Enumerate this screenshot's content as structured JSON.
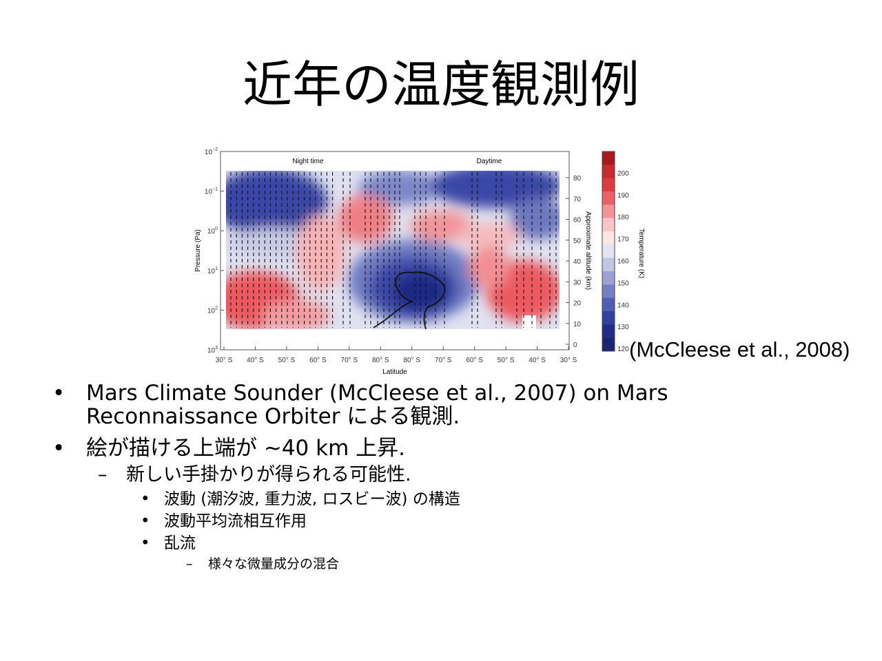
{
  "slide": {
    "title": "近年の温度観測例",
    "citation": "(McCleese et al., 2008)"
  },
  "figure": {
    "panel_labels": {
      "left": "Night time",
      "right": "Daytime"
    },
    "ylabel": "Pressure (Pa)",
    "xlabel": "Latitude",
    "right_axis_label": "Approximate altitude (km)",
    "pressure_ticks": [
      {
        "base": "10",
        "exp": "−2"
      },
      {
        "base": "10",
        "exp": "−1"
      },
      {
        "base": "10",
        "exp": "0"
      },
      {
        "base": "10",
        "exp": "1"
      },
      {
        "base": "10",
        "exp": "2"
      },
      {
        "base": "10",
        "exp": "3"
      }
    ],
    "altitude_ticks": [
      "80",
      "70",
      "60",
      "50",
      "40",
      "30",
      "20",
      "10",
      "0"
    ],
    "latitude_ticks": [
      "30° S",
      "40° S",
      "50° S",
      "60° S",
      "70° S",
      "80° S",
      "80° S",
      "70° S",
      "60° S",
      "50° S",
      "40° S",
      "30° S"
    ],
    "colorbar": {
      "label": "Temperature (K)",
      "ticks": [
        "200",
        "190",
        "180",
        "170",
        "160",
        "150",
        "140",
        "130",
        "120"
      ],
      "colors": [
        "#a8191f",
        "#c92a2e",
        "#e03b3e",
        "#ec6166",
        "#f39598",
        "#f9c4c5",
        "#fbe6e6",
        "#e3e4f2",
        "#c2c6e4",
        "#9ba2d3",
        "#7480c4",
        "#4f5db3",
        "#3240a0",
        "#202c86",
        "#1b2470"
      ]
    }
  },
  "bullets": {
    "b1_line1": "Mars Climate Sounder (McCleese et al., 2007) on Mars",
    "b1_line2": "Reconnaissance Orbiter による観測.",
    "b2": "絵が描ける上端が ~40 km 上昇.",
    "b2_sub": "新しい手掛かりが得られる可能性.",
    "b2_sub_items": [
      "波動 (潮汐波, 重力波, ロスビー波) の構造",
      "波動平均流相互作用",
      "乱流"
    ],
    "b2_sub_sub": "様々な微量成分の混合",
    "markers": {
      "l1": "•",
      "l2": "–",
      "l3": "•",
      "l4": "–"
    }
  }
}
